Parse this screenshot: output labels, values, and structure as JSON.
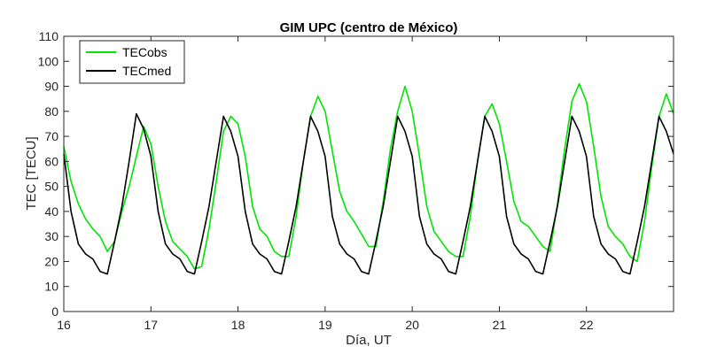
{
  "chart_data": {
    "type": "line",
    "title": "GIM UPC (centro de México)",
    "xlabel": "Día, UT",
    "ylabel": "TEC [TECU]",
    "xlim": [
      16,
      23
    ],
    "ylim": [
      0,
      110
    ],
    "xticks": [
      16,
      17,
      18,
      19,
      20,
      21,
      22
    ],
    "yticks": [
      0,
      10,
      20,
      30,
      40,
      50,
      60,
      70,
      80,
      90,
      100,
      110
    ],
    "grid": false,
    "box": true,
    "legend_location": "top-left",
    "series": [
      {
        "name": "TECobs",
        "color": "#00e600",
        "x": [
          16.0,
          16.083,
          16.167,
          16.25,
          16.333,
          16.417,
          16.5,
          16.583,
          16.667,
          16.75,
          16.833,
          16.917,
          17.0,
          17.083,
          17.167,
          17.25,
          17.333,
          17.417,
          17.5,
          17.583,
          17.667,
          17.75,
          17.833,
          17.917,
          18.0,
          18.083,
          18.167,
          18.25,
          18.333,
          18.417,
          18.5,
          18.583,
          18.667,
          18.75,
          18.833,
          18.917,
          19.0,
          19.083,
          19.167,
          19.25,
          19.333,
          19.417,
          19.5,
          19.583,
          19.667,
          19.75,
          19.833,
          19.917,
          20.0,
          20.083,
          20.167,
          20.25,
          20.333,
          20.417,
          20.5,
          20.583,
          20.667,
          20.75,
          20.833,
          20.917,
          21.0,
          21.083,
          21.167,
          21.25,
          21.333,
          21.417,
          21.5,
          21.583,
          21.667,
          21.75,
          21.833,
          21.917,
          22.0,
          22.083,
          22.167,
          22.25,
          22.333,
          22.417,
          22.5,
          22.583,
          22.667,
          22.75,
          22.833,
          22.917,
          23.0
        ],
        "y": [
          66,
          52,
          43,
          37,
          33,
          30,
          24,
          28,
          40,
          50,
          62,
          74,
          67,
          50,
          36,
          28,
          25,
          22,
          17,
          18,
          33,
          52,
          72,
          78,
          75,
          62,
          42,
          33,
          30,
          24,
          22,
          22,
          38,
          60,
          78,
          86,
          80,
          64,
          48,
          40,
          36,
          31,
          26,
          26,
          44,
          65,
          80,
          90,
          80,
          62,
          42,
          32,
          28,
          24,
          22,
          22,
          38,
          60,
          78,
          83,
          75,
          60,
          44,
          36,
          34,
          30,
          26,
          24,
          43,
          65,
          84,
          91,
          84,
          66,
          46,
          34,
          30,
          27,
          22,
          20,
          36,
          58,
          78,
          87,
          79
        ]
      },
      {
        "name": "TECmed",
        "color": "#000000",
        "x": [
          16.0,
          16.083,
          16.167,
          16.25,
          16.333,
          16.417,
          16.5,
          16.583,
          16.667,
          16.75,
          16.833,
          16.917,
          17.0,
          17.083,
          17.167,
          17.25,
          17.333,
          17.417,
          17.5,
          17.583,
          17.667,
          17.75,
          17.833,
          17.917,
          18.0,
          18.083,
          18.167,
          18.25,
          18.333,
          18.417,
          18.5,
          18.583,
          18.667,
          18.75,
          18.833,
          18.917,
          19.0,
          19.083,
          19.167,
          19.25,
          19.333,
          19.417,
          19.5,
          19.583,
          19.667,
          19.75,
          19.833,
          19.917,
          20.0,
          20.083,
          20.167,
          20.25,
          20.333,
          20.417,
          20.5,
          20.583,
          20.667,
          20.75,
          20.833,
          20.917,
          21.0,
          21.083,
          21.167,
          21.25,
          21.333,
          21.417,
          21.5,
          21.583,
          21.667,
          21.75,
          21.833,
          21.917,
          22.0,
          22.083,
          22.167,
          22.25,
          22.333,
          22.417,
          22.5,
          22.583,
          22.667,
          22.75,
          22.833,
          22.917,
          23.0
        ],
        "y": [
          63,
          40,
          27,
          23,
          21,
          16,
          15,
          28,
          42,
          60,
          79,
          73,
          62,
          40,
          27,
          23,
          21,
          16,
          15,
          28,
          42,
          60,
          78,
          72,
          62,
          40,
          27,
          23,
          21,
          16,
          15,
          28,
          42,
          60,
          78,
          72,
          62,
          38,
          27,
          23,
          21,
          16,
          15,
          28,
          42,
          60,
          78,
          72,
          62,
          38,
          27,
          23,
          21,
          16,
          15,
          28,
          42,
          60,
          78,
          72,
          62,
          38,
          27,
          23,
          21,
          16,
          15,
          28,
          42,
          60,
          78,
          72,
          62,
          38,
          27,
          23,
          21,
          16,
          15,
          28,
          42,
          60,
          78,
          72,
          63
        ]
      }
    ]
  }
}
